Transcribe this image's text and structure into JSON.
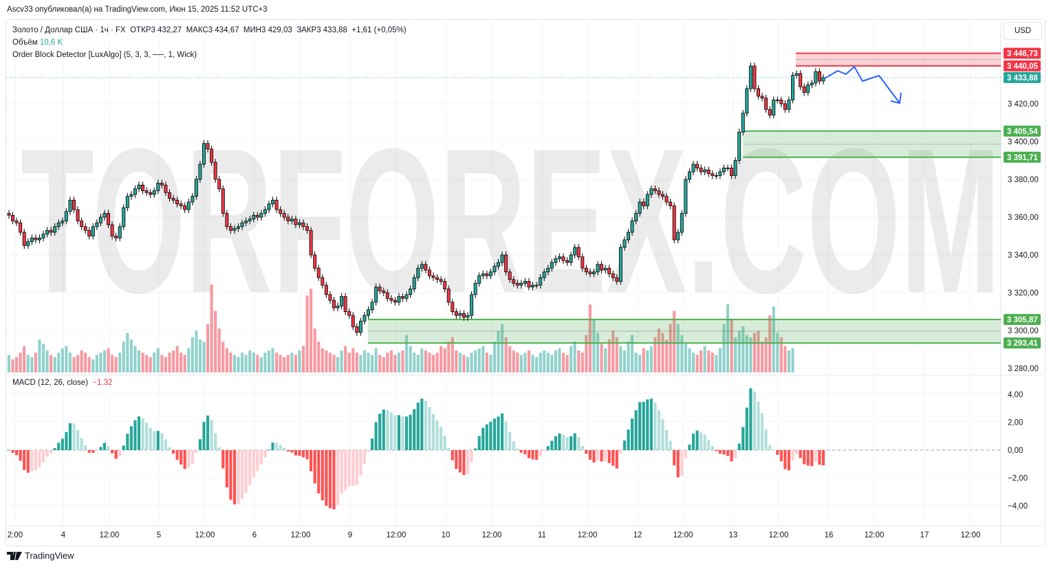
{
  "published": "Ascv33 опубликовал(а) на TradingView.com, Июн 15, 2025 11:52 UTC+3",
  "legend": {
    "symbol": "Золото / Доллар США · 1ч · FX",
    "open_label": "ОТКР",
    "open": "3 432,27",
    "high_label": "МАКС",
    "high": "3 434,67",
    "low_label": "МИН",
    "low": "3 429,03",
    "close_label": "ЗАКР",
    "close": "3 433,88",
    "change": "+1,61 (+0,05%)",
    "volume_label": "Объём",
    "volume": "10,6 K",
    "indicator": "Order Block Detector [LuxAlgo] (5, 3, 3, ──, 1, Wick)"
  },
  "macd_legend": {
    "label": "MACD (12, 26, close)",
    "value": "−1,32"
  },
  "currency_button": "USD",
  "footer": {
    "brand": "TradingView",
    "logo_icon": "tradingview-logo-icon"
  },
  "watermark": "TORFOREX.COM",
  "colors": {
    "up": "#26a69a",
    "down": "#f23645",
    "bear_block": "#f23645",
    "bull_block": "#4caf50",
    "forecast": "#2962ff"
  },
  "chart_data": {
    "type": "candlestick",
    "timeframe": "1h",
    "price_ticks": [
      "3 420,00",
      "3 400,00",
      "3 380,00",
      "3 360,00",
      "3 340,00",
      "3 320,00",
      "3 300,00",
      "3 280,00"
    ],
    "price_tick_values": [
      3420,
      3400,
      3380,
      3360,
      3340,
      3320,
      3300,
      3280
    ],
    "time_ticks": [
      "2:00",
      "4",
      "12:00",
      "5",
      "12:00",
      "6",
      "12:00",
      "9",
      "12:00",
      "10",
      "12:00",
      "11",
      "12:00",
      "12",
      "12:00",
      "13",
      "12:00",
      "16",
      "12:00",
      "17",
      "12:00"
    ],
    "last_price": {
      "value": 3433.88,
      "label": "3 433,88"
    },
    "order_blocks": [
      {
        "type": "bearish",
        "top": 3446.73,
        "bottom": 3440.05,
        "top_label": "3 446,73",
        "bottom_label": "3 440,05"
      },
      {
        "type": "bullish",
        "top": 3405.54,
        "bottom": 3391.71,
        "top_label": "3 405,54",
        "bottom_label": "3 391,71"
      },
      {
        "type": "bullish",
        "top": 3305.87,
        "bottom": 3293.41,
        "top_label": "3 305,87",
        "bottom_label": "3 293,41"
      }
    ],
    "close": [
      3361,
      3358,
      3357,
      3352,
      3345,
      3347,
      3349,
      3348,
      3349,
      3351,
      3353,
      3352,
      3355,
      3357,
      3358,
      3363,
      3369,
      3364,
      3358,
      3355,
      3353,
      3350,
      3355,
      3357,
      3360,
      3362,
      3356,
      3350,
      3349,
      3355,
      3365,
      3371,
      3372,
      3375,
      3377,
      3374,
      3373,
      3372,
      3374,
      3378,
      3377,
      3373,
      3370,
      3369,
      3367,
      3366,
      3364,
      3368,
      3371,
      3380,
      3388,
      3399,
      3396,
      3389,
      3380,
      3375,
      3362,
      3355,
      3353,
      3354,
      3355,
      3357,
      3358,
      3359,
      3361,
      3360,
      3362,
      3364,
      3367,
      3369,
      3364,
      3362,
      3360,
      3358,
      3359,
      3356,
      3357,
      3355,
      3353,
      3340,
      3333,
      3328,
      3324,
      3319,
      3316,
      3312,
      3313,
      3318,
      3310,
      3308,
      3302,
      3299,
      3305,
      3308,
      3311,
      3315,
      3323,
      3321,
      3320,
      3317,
      3316,
      3315,
      3318,
      3317,
      3319,
      3322,
      3328,
      3333,
      3335,
      3332,
      3329,
      3328,
      3327,
      3326,
      3322,
      3315,
      3310,
      3308,
      3309,
      3307,
      3308,
      3319,
      3325,
      3329,
      3330,
      3329,
      3331,
      3334,
      3336,
      3340,
      3331,
      3327,
      3325,
      3324,
      3325,
      3326,
      3323,
      3324,
      3324,
      3328,
      3331,
      3333,
      3336,
      3338,
      3339,
      3337,
      3336,
      3340,
      3344,
      3339,
      3333,
      3331,
      3330,
      3331,
      3335,
      3332,
      3333,
      3330,
      3328,
      3326,
      3344,
      3348,
      3352,
      3358,
      3362,
      3368,
      3366,
      3372,
      3375,
      3374,
      3372,
      3371,
      3368,
      3366,
      3348,
      3352,
      3362,
      3380,
      3384,
      3388,
      3386,
      3384,
      3385,
      3383,
      3382,
      3382,
      3384,
      3386,
      3386,
      3382,
      3390,
      3405,
      3415,
      3428,
      3440,
      3428,
      3424,
      3423,
      3417,
      3414,
      3422,
      3422,
      3420,
      3417,
      3422,
      3435,
      3436,
      3429,
      3426,
      3430,
      3431,
      3437,
      3432,
      3433.88
    ],
    "volume_k": [
      8,
      6,
      7,
      9,
      12,
      8,
      7,
      9,
      15,
      13,
      10,
      8,
      7,
      9,
      11,
      12,
      9,
      7,
      8,
      10,
      9,
      7,
      6,
      8,
      9,
      10,
      11,
      8,
      7,
      9,
      14,
      18,
      15,
      12,
      10,
      9,
      8,
      7,
      9,
      11,
      8,
      7,
      9,
      10,
      12,
      9,
      8,
      11,
      16,
      19,
      15,
      14,
      22,
      40,
      28,
      20,
      14,
      11,
      9,
      8,
      7,
      9,
      8,
      10,
      9,
      8,
      7,
      9,
      10,
      11,
      9,
      8,
      7,
      8,
      9,
      8,
      10,
      12,
      35,
      38,
      20,
      14,
      11,
      10,
      9,
      8,
      7,
      10,
      12,
      9,
      11,
      9,
      8,
      10,
      9,
      8,
      11,
      8,
      7,
      9,
      10,
      8,
      9,
      10,
      17,
      12,
      9,
      8,
      11,
      10,
      9,
      8,
      9,
      12,
      11,
      14,
      16,
      10,
      9,
      8,
      7,
      9,
      10,
      11,
      12,
      9,
      8,
      14,
      19,
      22,
      16,
      12,
      10,
      9,
      8,
      9,
      10,
      8,
      7,
      9,
      10,
      9,
      8,
      10,
      11,
      9,
      8,
      12,
      14,
      10,
      9,
      17,
      31,
      24,
      18,
      13,
      11,
      15,
      19,
      16,
      12,
      10,
      14,
      17,
      9,
      8,
      11,
      10,
      12,
      16,
      20,
      18,
      15,
      22,
      28,
      22,
      17,
      13,
      11,
      9,
      8,
      10,
      12,
      10,
      9,
      8,
      11,
      22,
      31,
      24,
      16,
      19,
      21,
      17,
      16,
      18,
      19,
      14,
      16,
      26,
      30,
      18,
      16,
      12,
      10,
      11
    ]
  }
}
